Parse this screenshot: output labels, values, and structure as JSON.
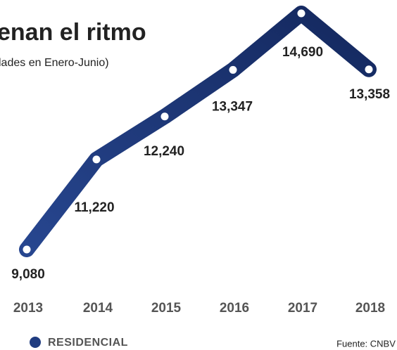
{
  "chart_data": {
    "type": "line",
    "title": "enan el ritmo",
    "subtitle": "lades en Enero-Junio)",
    "categories": [
      "2013",
      "2014",
      "2015",
      "2016",
      "2017",
      "2018"
    ],
    "series": [
      {
        "name": "RESIDENCIAL",
        "color": "#1f3c80",
        "values": [
          9080,
          11220,
          12240,
          13347,
          14690,
          13358
        ],
        "value_labels": [
          "9,080",
          "11,220",
          "12,240",
          "13,347",
          "14,690",
          "13,358"
        ]
      }
    ],
    "source": "Fuente: CNBV"
  }
}
